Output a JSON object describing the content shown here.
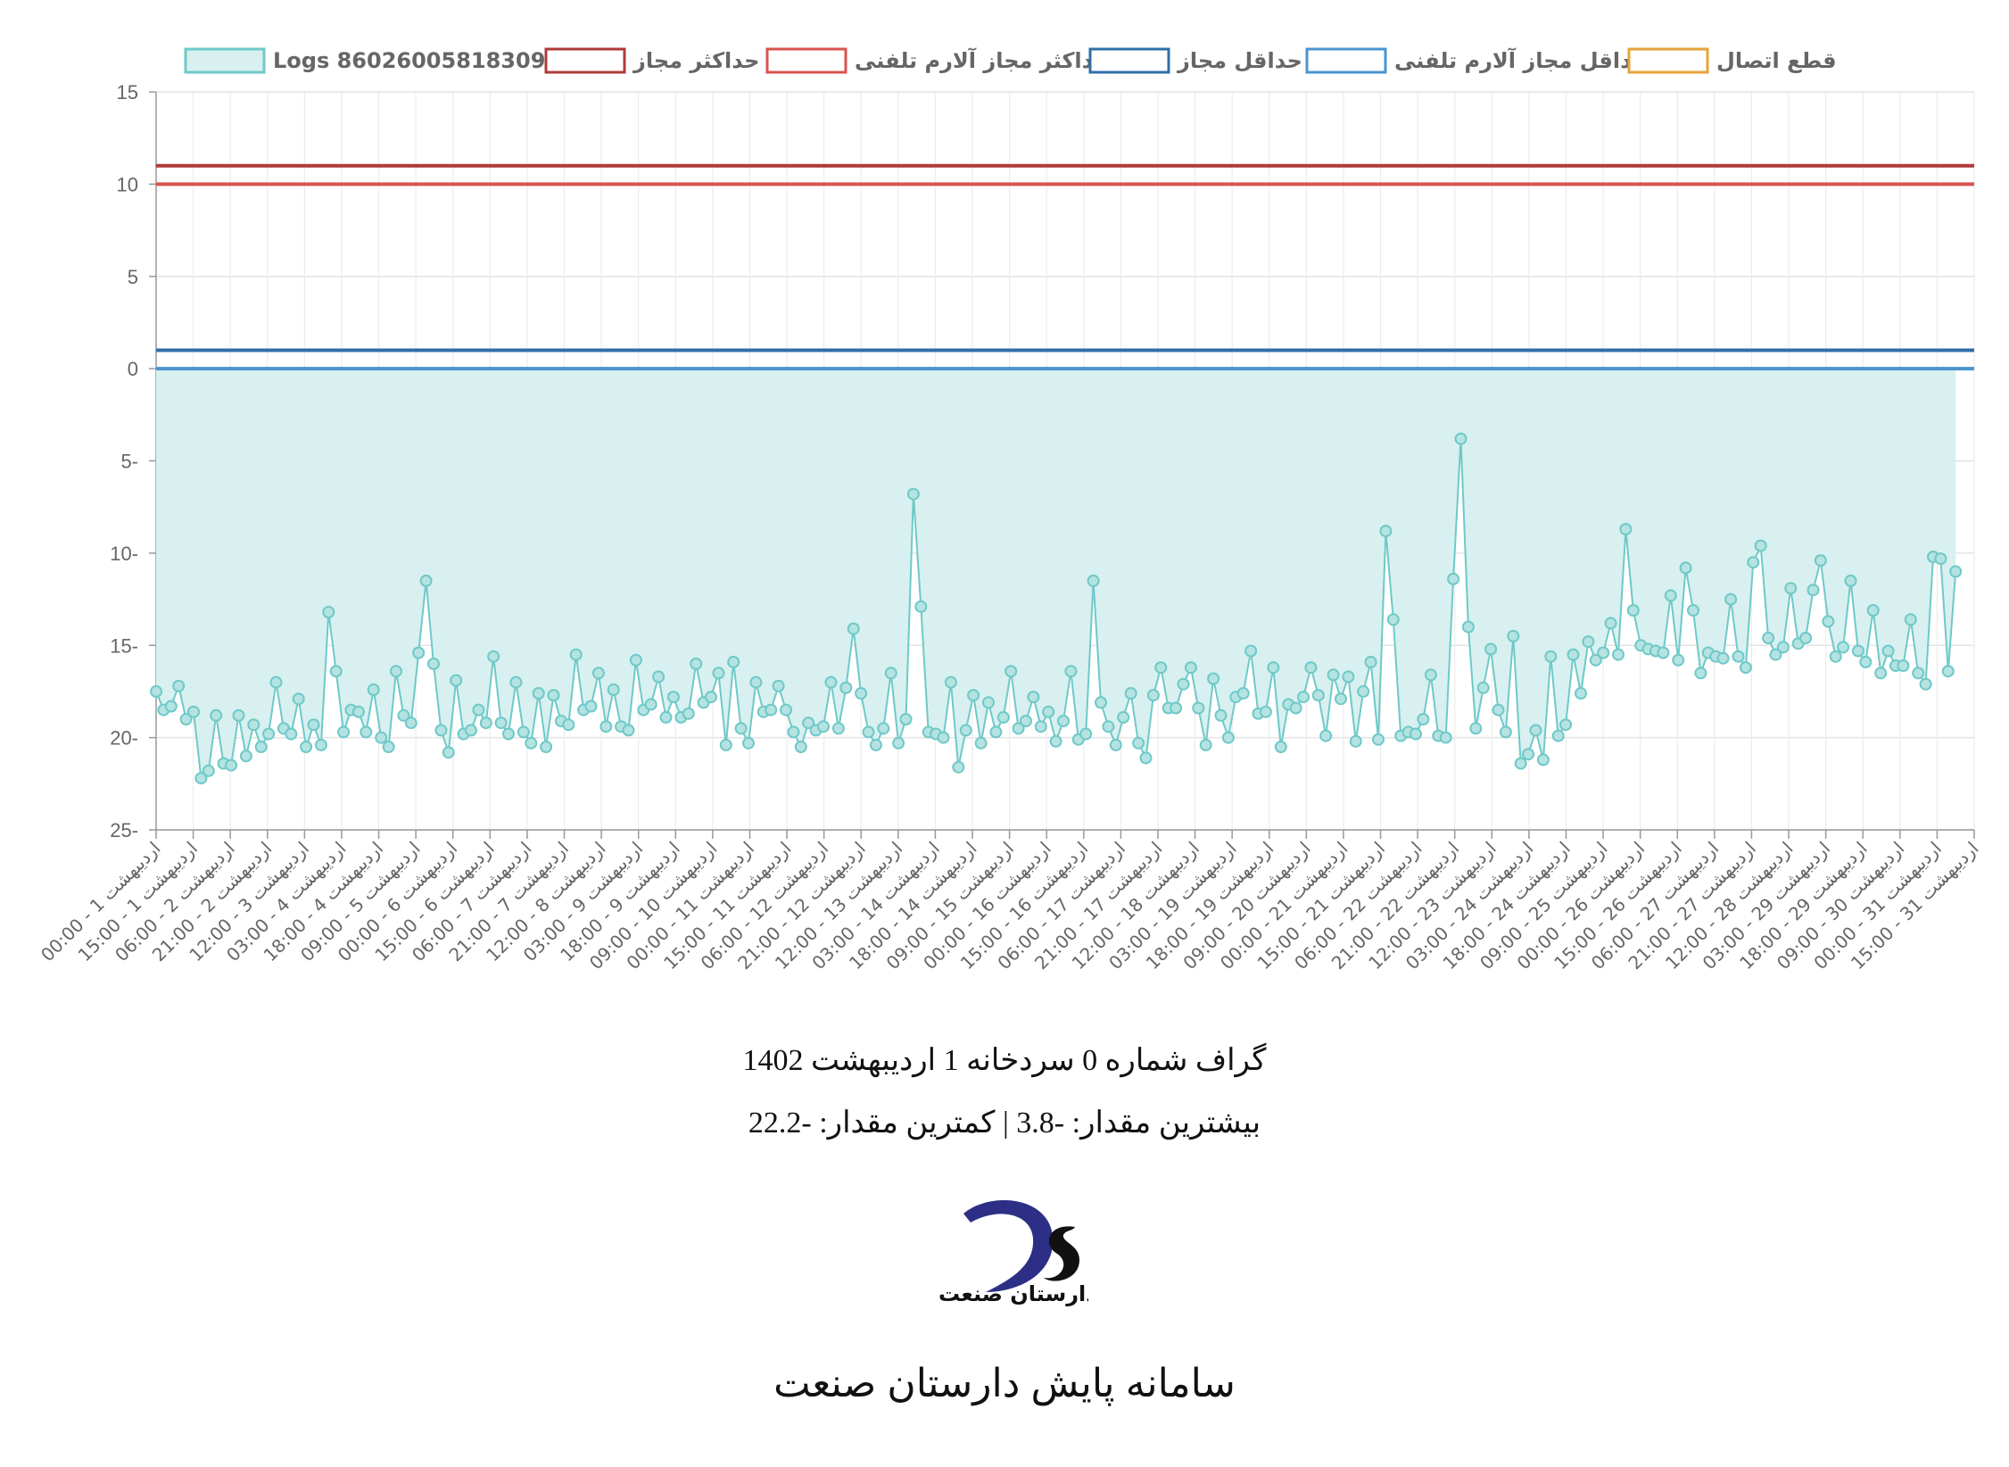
{
  "chart_data": {
    "type": "line",
    "legend": [
      {
        "label": "Logs 860260058183095",
        "color": "#6fc9c8",
        "fill": "#d8f0f0"
      },
      {
        "label": "حداکثر مجاز",
        "color": "#b03a3a",
        "fill": "#ffffff"
      },
      {
        "label": "حداکثر مجاز آلارم تلفنی",
        "color": "#d9534f",
        "fill": "#ffffff"
      },
      {
        "label": "حداقل مجاز",
        "color": "#2f6fa8",
        "fill": "#ffffff"
      },
      {
        "label": "حداقل مجاز آلارم تلفنی",
        "color": "#4a94cf",
        "fill": "#ffffff"
      },
      {
        "label": "قطع اتصال",
        "color": "#e5a43a",
        "fill": "#ffffff"
      }
    ],
    "legend_position": "top",
    "y_ticks": [
      "15",
      "10",
      "5",
      "0",
      "5-",
      "10-",
      "15-",
      "20-",
      "25-"
    ],
    "ylim": [
      -25,
      15
    ],
    "grid": true,
    "x_ticks": [
      "00:00 - 1 اردیبهشت",
      "15:00 - 1 اردیبهشت",
      "06:00 - 2 اردیبهشت",
      "21:00 - 2 اردیبهشت",
      "12:00 - 3 اردیبهشت",
      "03:00 - 4 اردیبهشت",
      "18:00 - 4 اردیبهشت",
      "09:00 - 5 اردیبهشت",
      "00:00 - 6 اردیبهشت",
      "15:00 - 6 اردیبهشت",
      "06:00 - 7 اردیبهشت",
      "21:00 - 7 اردیبهشت",
      "12:00 - 8 اردیبهشت",
      "03:00 - 9 اردیبهشت",
      "18:00 - 9 اردیبهشت",
      "09:00 - 10 اردیبهشت",
      "00:00 - 11 اردیبهشت",
      "15:00 - 11 اردیبهشت",
      "06:00 - 12 اردیبهشت",
      "21:00 - 12 اردیبهشت",
      "12:00 - 13 اردیبهشت",
      "03:00 - 14 اردیبهشت",
      "18:00 - 14 اردیبهشت",
      "09:00 - 15 اردیبهشت",
      "00:00 - 16 اردیبهشت",
      "15:00 - 16 اردیبهشت",
      "06:00 - 17 اردیبهشت",
      "21:00 - 17 اردیبهشت",
      "12:00 - 18 اردیبهشت",
      "03:00 - 19 اردیبهشت",
      "18:00 - 19 اردیبهشت",
      "09:00 - 20 اردیبهشت",
      "00:00 - 21 اردیبهشت",
      "15:00 - 21 اردیبهشت",
      "06:00 - 22 اردیبهشت",
      "21:00 - 22 اردیبهشت",
      "12:00 - 23 اردیبهشت",
      "03:00 - 24 اردیبهشت",
      "18:00 - 24 اردیبهشت",
      "09:00 - 25 اردیبهشت",
      "00:00 - 26 اردیبهشت",
      "15:00 - 26 اردیبهشت",
      "06:00 - 27 اردیبهشت",
      "21:00 - 27 اردیبهشت",
      "12:00 - 28 اردیبهشت",
      "03:00 - 29 اردیبهشت",
      "18:00 - 29 اردیبهشت",
      "09:00 - 30 اردیبهشت",
      "00:00 - 31 اردیبهشت",
      "15:00 - 31 اردیبهشت"
    ],
    "threshold_lines": [
      {
        "series": "حداکثر مجاز",
        "value": 11,
        "color": "#b03a3a"
      },
      {
        "series": "حداکثر مجاز آلارم تلفنی",
        "value": 10,
        "color": "#d9534f"
      },
      {
        "series": "حداقل مجاز",
        "value": 1,
        "color": "#2f6fa8"
      },
      {
        "series": "حداقل مجاز آلارم تلفنی",
        "value": 0,
        "color": "#4a94cf"
      }
    ],
    "series": [
      {
        "name": "Logs 860260058183095",
        "color": "#6fc9c8",
        "values": [
          -17.5,
          -18.5,
          -18.3,
          -17.2,
          -19.0,
          -18.6,
          -22.2,
          -21.8,
          -18.8,
          -21.4,
          -21.5,
          -18.8,
          -21.0,
          -19.3,
          -20.5,
          -19.8,
          -17.0,
          -19.5,
          -19.8,
          -17.9,
          -20.5,
          -19.3,
          -20.4,
          -13.2,
          -16.4,
          -19.7,
          -18.5,
          -18.6,
          -19.7,
          -17.4,
          -20.0,
          -20.5,
          -16.4,
          -18.8,
          -19.2,
          -15.4,
          -11.5,
          -16.0,
          -19.6,
          -20.8,
          -16.9,
          -19.8,
          -19.6,
          -18.5,
          -19.2,
          -15.6,
          -19.2,
          -19.8,
          -17.0,
          -19.7,
          -20.3,
          -17.6,
          -20.5,
          -17.7,
          -19.1,
          -19.3,
          -15.5,
          -18.5,
          -18.3,
          -16.5,
          -19.4,
          -17.4,
          -19.4,
          -19.6,
          -15.8,
          -18.5,
          -18.2,
          -16.7,
          -18.9,
          -17.8,
          -18.9,
          -18.7,
          -16.0,
          -18.1,
          -17.8,
          -16.5,
          -20.4,
          -15.9,
          -19.5,
          -20.3,
          -17.0,
          -18.6,
          -18.5,
          -17.2,
          -18.5,
          -19.7,
          -20.5,
          -19.2,
          -19.6,
          -19.4,
          -17.0,
          -19.5,
          -17.3,
          -14.1,
          -17.6,
          -19.7,
          -20.4,
          -19.5,
          -16.5,
          -20.3,
          -19.0,
          -6.8,
          -12.9,
          -19.7,
          -19.8,
          -20.0,
          -17.0,
          -21.6,
          -19.6,
          -17.7,
          -20.3,
          -18.1,
          -19.7,
          -18.9,
          -16.4,
          -19.5,
          -19.1,
          -17.8,
          -19.4,
          -18.6,
          -20.2,
          -19.1,
          -16.4,
          -20.1,
          -19.8,
          -11.5,
          -18.1,
          -19.4,
          -20.4,
          -18.9,
          -17.6,
          -20.3,
          -21.1,
          -17.7,
          -16.2,
          -18.4,
          -18.4,
          -17.1,
          -16.2,
          -18.4,
          -20.4,
          -16.8,
          -18.8,
          -20.0,
          -17.8,
          -17.6,
          -15.3,
          -18.7,
          -18.6,
          -16.2,
          -20.5,
          -18.2,
          -18.4,
          -17.8,
          -16.2,
          -17.7,
          -19.9,
          -16.6,
          -17.9,
          -16.7,
          -20.2,
          -17.5,
          -15.9,
          -20.1,
          -8.8,
          -13.6,
          -19.9,
          -19.7,
          -19.8,
          -19.0,
          -16.6,
          -19.9,
          -20.0,
          -11.4,
          -3.8,
          -14.0,
          -19.5,
          -17.3,
          -15.2,
          -18.5,
          -19.7,
          -14.5,
          -21.4,
          -20.9,
          -19.6,
          -21.2,
          -15.6,
          -19.9,
          -19.3,
          -15.5,
          -17.6,
          -14.8,
          -15.8,
          -15.4,
          -13.8,
          -15.5,
          -8.7,
          -13.1,
          -15.0,
          -15.2,
          -15.3,
          -15.4,
          -12.3,
          -15.8,
          -10.8,
          -13.1,
          -16.5,
          -15.4,
          -15.6,
          -15.7,
          -12.5,
          -15.6,
          -16.2,
          -10.5,
          -9.6,
          -14.6,
          -15.5,
          -15.1,
          -11.9,
          -14.9,
          -14.6,
          -12.0,
          -10.4,
          -13.7,
          -15.6,
          -15.1,
          -11.5,
          -15.3,
          -15.9,
          -13.1,
          -16.5,
          -15.3,
          -16.1,
          -16.1,
          -13.6,
          -16.5,
          -17.1,
          -10.2,
          -10.3,
          -16.4,
          -11.0
        ]
      }
    ]
  },
  "caption_line1": "گراف شماره 0   سردخانه 1   اردیبهشت 1402",
  "caption_line2": "بیشترین مقدار: -3.8 | کمترین مقدار: -22.2",
  "footer_text": "سامانه پایش دارستان صنعت",
  "logo": {
    "letters": "Ds",
    "text": "دارستان صنعت",
    "color_primary": "#2d2f86",
    "color_secondary": "#111111"
  }
}
